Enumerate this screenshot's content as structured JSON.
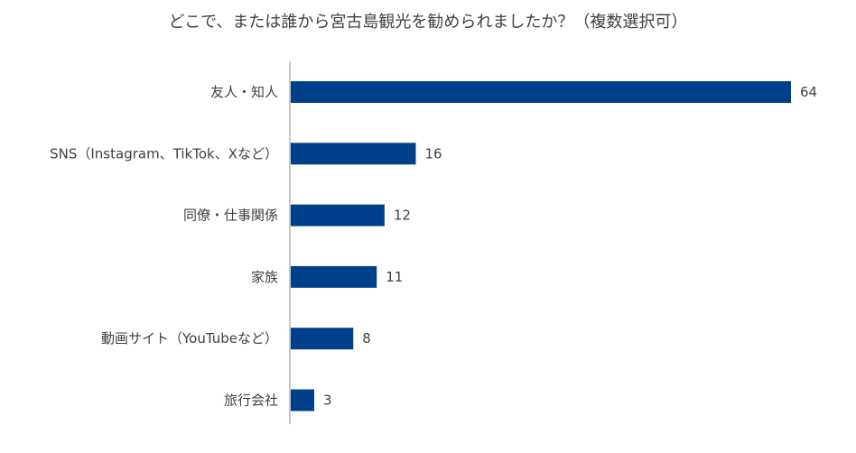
{
  "chart_data": {
    "type": "bar",
    "orientation": "horizontal",
    "title": "どこで、または誰から宮古島観光を勧められましたか？（複数選択可）",
    "categories": [
      "友人・知人",
      "SNS（Instagram、TikTok、Xなど）",
      "同僚・仕事関係",
      "家族",
      "動画サイト（YouTubeなど）",
      "旅行会社"
    ],
    "values": [
      64,
      16,
      12,
      11,
      8,
      3
    ],
    "xlim": [
      0,
      64
    ],
    "grid": false,
    "legend": "none",
    "bar_color": "#003F8A",
    "axis_color": "#C8C8C8"
  }
}
